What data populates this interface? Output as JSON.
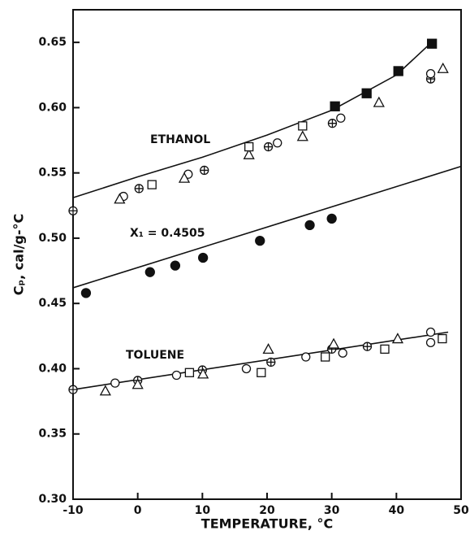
{
  "chart_data": {
    "type": "scatter",
    "x_label": "TEMPERATURE, °C",
    "y_label": "Cₚ, cal/g-°C",
    "xlim": [
      -10,
      50
    ],
    "xticks": [
      -10,
      0,
      10,
      20,
      30,
      40,
      50
    ],
    "ylim": [
      0.3,
      0.675
    ],
    "yticks": [
      {
        "value": 0.3,
        "label": "0.30"
      },
      0.35,
      {
        "value": 0.4,
        "label": "0.40"
      },
      0.45,
      {
        "value": 0.5,
        "label": "0.50"
      },
      0.55,
      {
        "value": 0.6,
        "label": "0.60"
      },
      0.65
    ],
    "color": "#111111",
    "groups": [
      {
        "label": "ETHANOL",
        "curve": {
          "x": [
            -10,
            0,
            10,
            20,
            30,
            40,
            45
          ],
          "y": [
            0.531,
            0.547,
            0.562,
            0.579,
            0.598,
            0.625,
            0.648
          ]
        },
        "points": [
          {
            "marker": "circled-plus",
            "x": [
              -10,
              0.2,
              10.3,
              20.2,
              30.1,
              45.3
            ],
            "y": [
              0.521,
              0.538,
              0.552,
              0.57,
              0.588,
              0.622
            ]
          },
          {
            "marker": "circle",
            "x": [
              -2.2,
              7.8,
              21.6,
              31.4,
              45.3
            ],
            "y": [
              0.532,
              0.549,
              0.573,
              0.592,
              0.626
            ]
          },
          {
            "marker": "triangle",
            "x": [
              -2.8,
              7.2,
              17.2,
              25.5,
              37.3,
              47.2
            ],
            "y": [
              0.53,
              0.546,
              0.564,
              0.578,
              0.604,
              0.63
            ]
          },
          {
            "marker": "square",
            "x": [
              2.2,
              17.2,
              25.5
            ],
            "y": [
              0.541,
              0.57,
              0.586
            ]
          },
          {
            "marker": "filled-square",
            "x": [
              30.5,
              35.4,
              40.3,
              45.5
            ],
            "y": [
              0.601,
              0.611,
              0.628,
              0.649
            ]
          }
        ]
      },
      {
        "label": "X₁ = 0.4505",
        "curve": {
          "x": [
            -10,
            50
          ],
          "y": [
            0.462,
            0.555
          ]
        },
        "points": [
          {
            "marker": "filled-circle",
            "x": [
              -8,
              1.9,
              5.8,
              10.1,
              18.9,
              26.6,
              30
            ],
            "y": [
              0.458,
              0.474,
              0.479,
              0.485,
              0.498,
              0.51,
              0.515
            ]
          }
        ]
      },
      {
        "label": "TOLUENE",
        "curve": {
          "x": [
            -10,
            48
          ],
          "y": [
            0.384,
            0.428
          ]
        },
        "points": [
          {
            "marker": "circled-plus",
            "x": [
              -10,
              0,
              10,
              20.6,
              30,
              35.5
            ],
            "y": [
              0.384,
              0.391,
              0.399,
              0.405,
              0.415,
              0.417
            ]
          },
          {
            "marker": "circle",
            "x": [
              -3.5,
              6,
              16.8,
              26,
              31.7,
              45.3,
              45.3
            ],
            "y": [
              0.389,
              0.395,
              0.4,
              0.409,
              0.412,
              0.428,
              0.42
            ]
          },
          {
            "marker": "triangle",
            "x": [
              -5,
              0,
              10.1,
              20.2,
              30.3,
              40.2
            ],
            "y": [
              0.383,
              0.388,
              0.396,
              0.415,
              0.419,
              0.423
            ]
          },
          {
            "marker": "square",
            "x": [
              8,
              19.1,
              29,
              38.2,
              47.1
            ],
            "y": [
              0.397,
              0.397,
              0.409,
              0.415,
              0.423
            ]
          }
        ]
      }
    ]
  }
}
